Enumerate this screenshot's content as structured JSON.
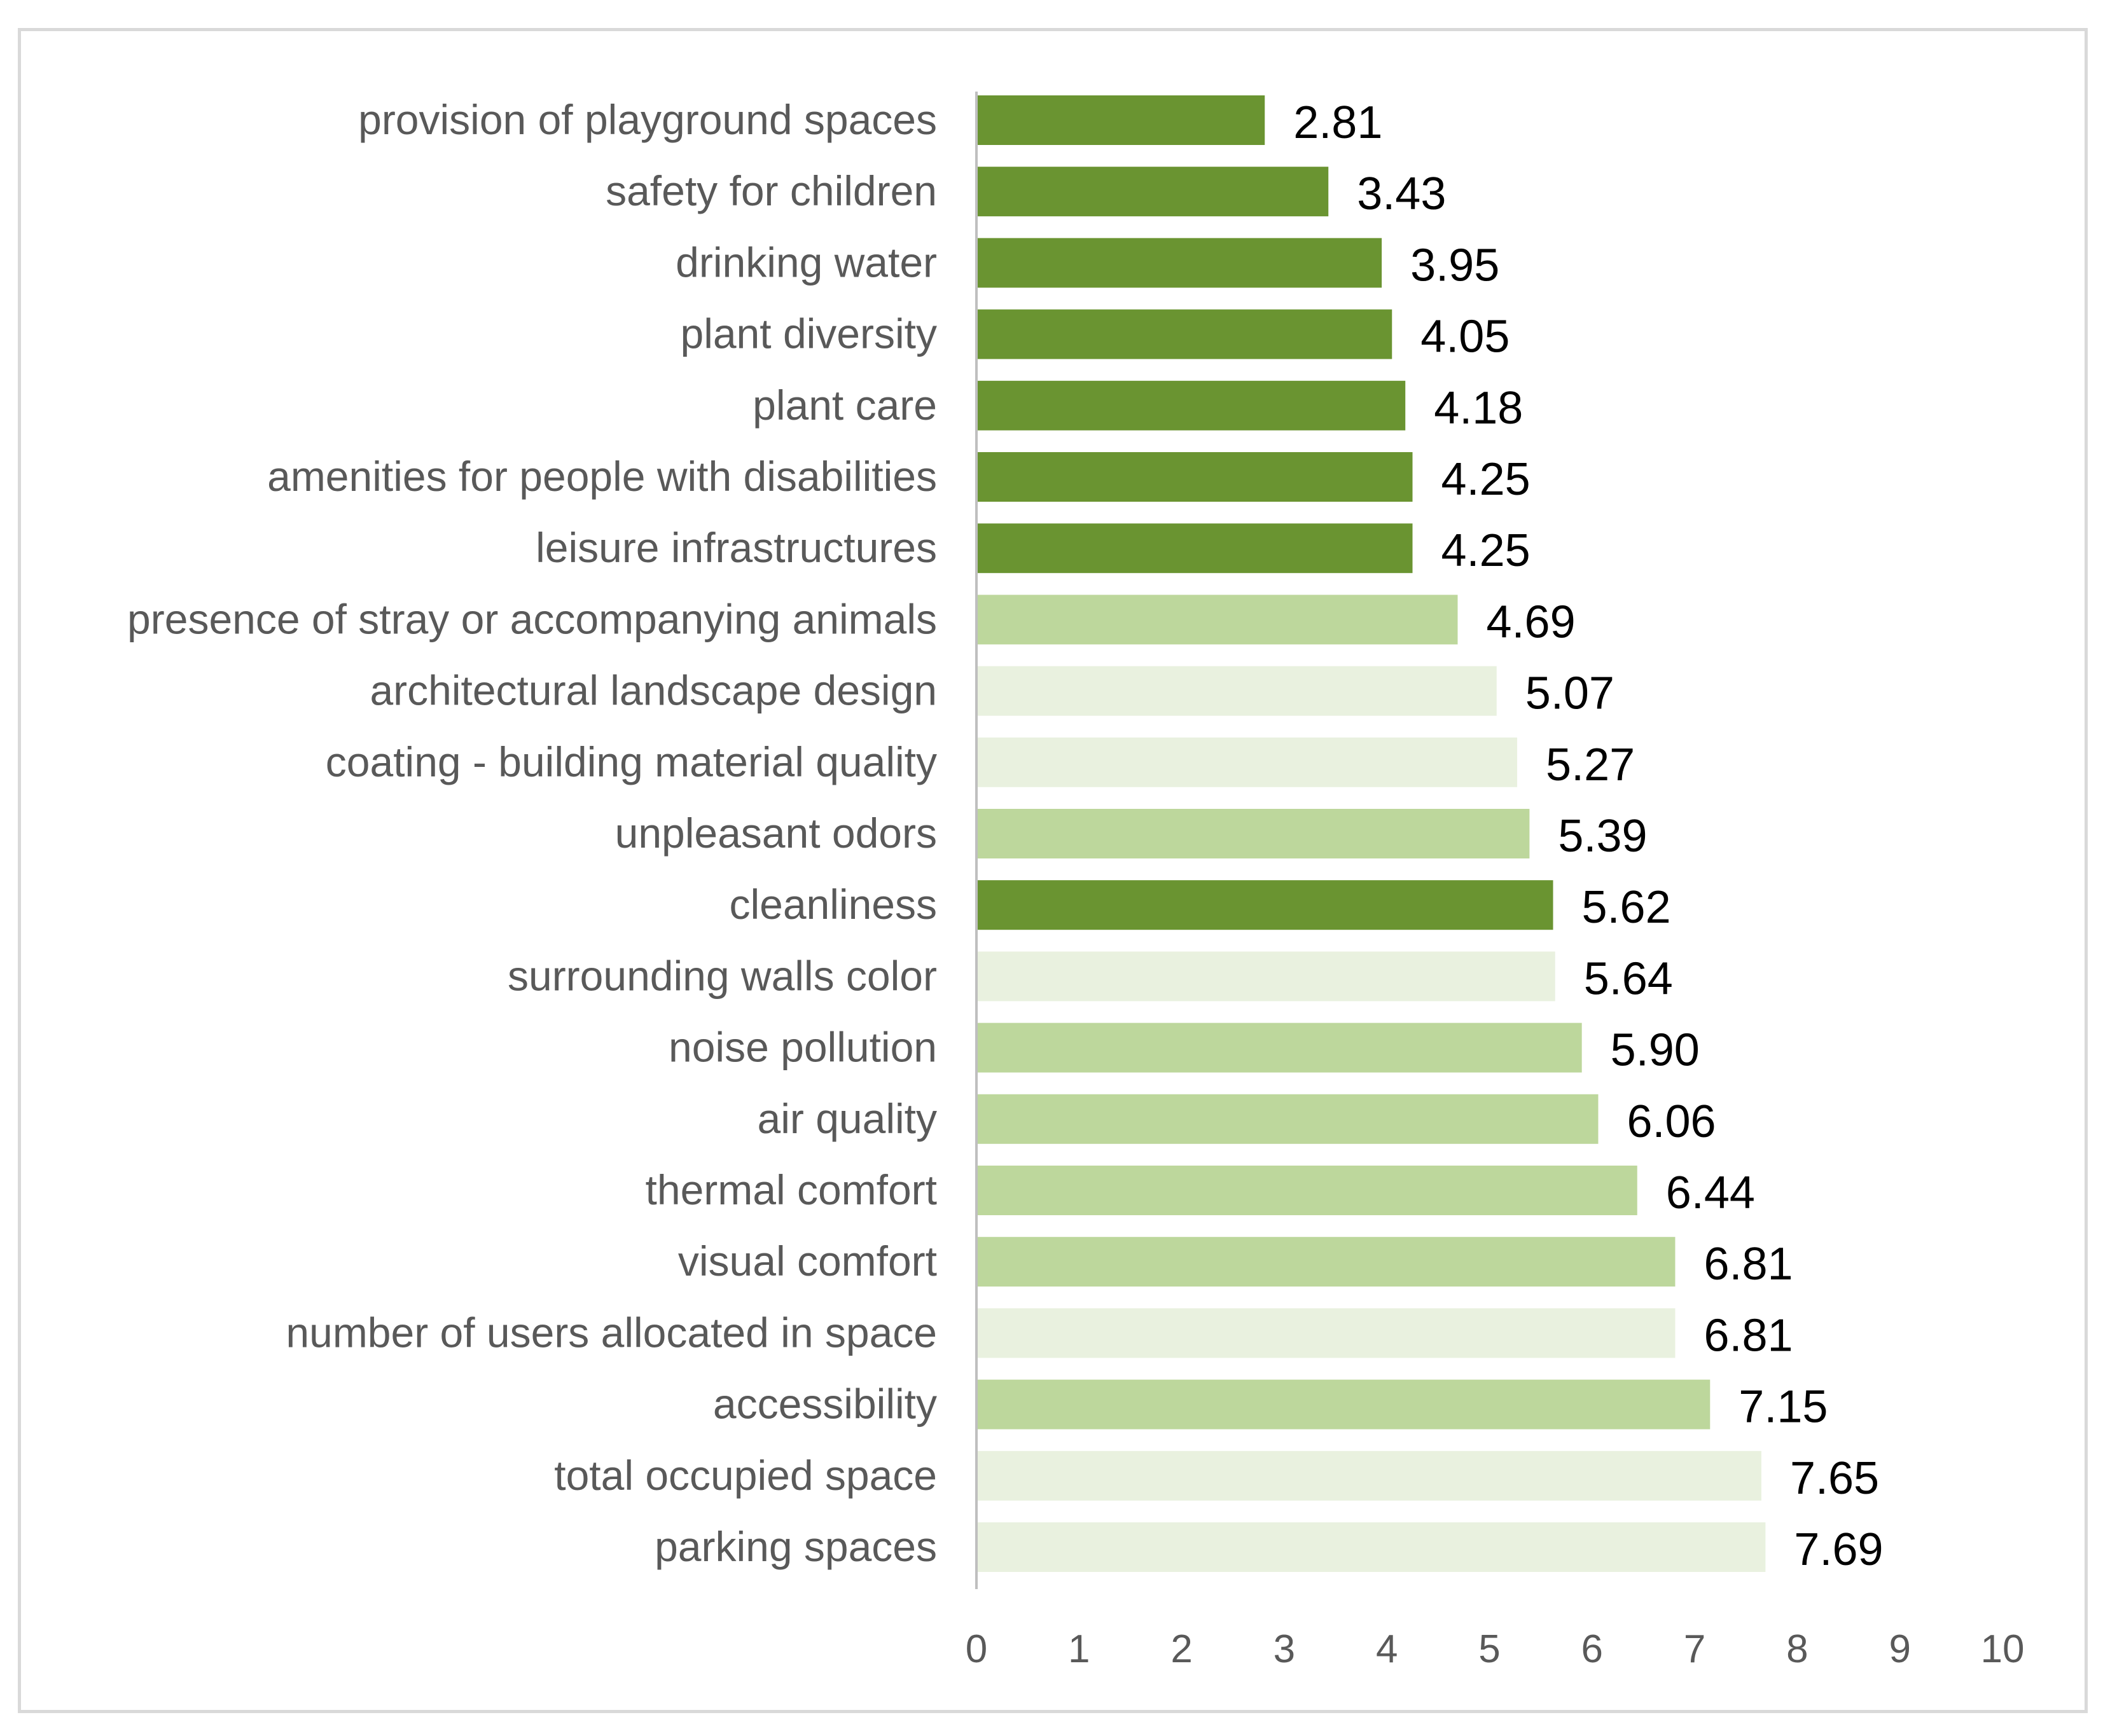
{
  "chart_data": {
    "type": "bar",
    "orientation": "horizontal",
    "title": "",
    "xlabel": "",
    "ylabel": "",
    "xlim": [
      0,
      10
    ],
    "ticks": [
      "0",
      "1",
      "2",
      "3",
      "4",
      "5",
      "6",
      "7",
      "8",
      "9",
      "10"
    ],
    "grid": false,
    "legend": "none",
    "colors": {
      "dark": "#6a9431",
      "medium": "#bdd79c",
      "light": "#e9f1df",
      "axis": "#bfbfbf",
      "frame": "#d9d9d9"
    },
    "bars": [
      {
        "label": "provision of playground spaces",
        "value": 2.81,
        "value_text": "2.81",
        "shade": "dark"
      },
      {
        "label": "safety for children",
        "value": 3.43,
        "value_text": "3.43",
        "shade": "dark"
      },
      {
        "label": "drinking water",
        "value": 3.95,
        "value_text": "3.95",
        "shade": "dark"
      },
      {
        "label": "plant diversity",
        "value": 4.05,
        "value_text": "4.05",
        "shade": "dark"
      },
      {
        "label": "plant care",
        "value": 4.18,
        "value_text": "4.18",
        "shade": "dark"
      },
      {
        "label": "amenities for people with disabilities",
        "value": 4.25,
        "value_text": "4.25",
        "shade": "dark"
      },
      {
        "label": "leisure infrastructures",
        "value": 4.25,
        "value_text": "4.25",
        "shade": "dark"
      },
      {
        "label": "presence of stray or accompanying animals",
        "value": 4.69,
        "value_text": "4.69",
        "shade": "medium"
      },
      {
        "label": "architectural landscape design",
        "value": 5.07,
        "value_text": "5.07",
        "shade": "light"
      },
      {
        "label": "coating - building material quality",
        "value": 5.27,
        "value_text": "5.27",
        "shade": "light"
      },
      {
        "label": "unpleasant odors",
        "value": 5.39,
        "value_text": "5.39",
        "shade": "medium"
      },
      {
        "label": "cleanliness",
        "value": 5.62,
        "value_text": "5.62",
        "shade": "dark"
      },
      {
        "label": "surrounding walls color",
        "value": 5.64,
        "value_text": "5.64",
        "shade": "light"
      },
      {
        "label": "noise pollution",
        "value": 5.9,
        "value_text": "5.90",
        "shade": "medium"
      },
      {
        "label": "air quality",
        "value": 6.06,
        "value_text": "6.06",
        "shade": "medium"
      },
      {
        "label": "thermal comfort",
        "value": 6.44,
        "value_text": "6.44",
        "shade": "medium"
      },
      {
        "label": "visual comfort",
        "value": 6.81,
        "value_text": "6.81",
        "shade": "medium"
      },
      {
        "label": "number of users allocated in space",
        "value": 6.81,
        "value_text": "6.81",
        "shade": "light"
      },
      {
        "label": "accessibility",
        "value": 7.15,
        "value_text": "7.15",
        "shade": "medium"
      },
      {
        "label": "total occupied space",
        "value": 7.65,
        "value_text": "7.65",
        "shade": "light"
      },
      {
        "label": "parking spaces",
        "value": 7.69,
        "value_text": "7.69",
        "shade": "light"
      }
    ]
  }
}
